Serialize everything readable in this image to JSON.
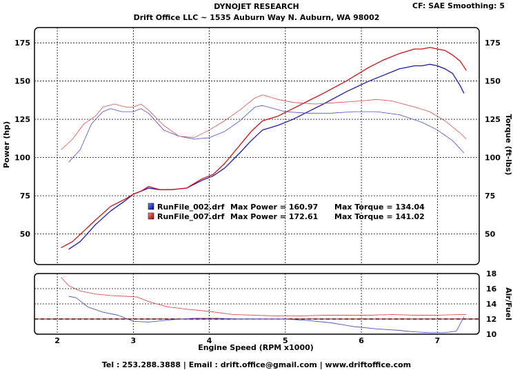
{
  "header": {
    "title": "DYNOJET RESEARCH",
    "subtitle": "Drift Office LLC ~ 1535 Auburn Way N. Auburn, WA 98002",
    "cf": "CF: SAE  Smoothing: 5"
  },
  "footer": {
    "contact": "Tel : 253.288.3888 | Email : drift.office@gmail.com | www.driftoffice.com"
  },
  "colors": {
    "run1": "#1a1ab0",
    "run2": "#d01010",
    "grid": "#000000"
  },
  "chart_data": [
    {
      "type": "line",
      "xlabel": "Engine Speed (RPM x1000)",
      "ylabel": "Power (hp)",
      "y2label": "Torque (ft-lbs)",
      "xlim": [
        1.7,
        7.55
      ],
      "ylim": [
        30,
        185
      ],
      "xticks": [
        "2",
        "3",
        "4",
        "5",
        "6",
        "7"
      ],
      "yticks": [
        "50",
        "75",
        "100",
        "125",
        "150",
        "175"
      ],
      "grid": true,
      "legend": [
        {
          "name": "RunFile_002.drf",
          "power_label": "Max Power = 160.97",
          "torque_label": "Max Torque = 134.04"
        },
        {
          "name": "RunFile_007.drf",
          "power_label": "Max Power = 172.61",
          "torque_label": "Max Torque = 141.02"
        }
      ],
      "series": [
        {
          "name": "RunFile_002.drf",
          "kind": "power",
          "color": "#1a1ab0",
          "width": 1.3,
          "x": [
            2.15,
            2.3,
            2.5,
            2.7,
            2.9,
            3.0,
            3.1,
            3.2,
            3.35,
            3.5,
            3.7,
            3.9,
            4.05,
            4.2,
            4.4,
            4.55,
            4.7,
            4.9,
            5.1,
            5.3,
            5.5,
            5.8,
            6.1,
            6.3,
            6.5,
            6.7,
            6.8,
            6.9,
            7.0,
            7.1,
            7.2,
            7.3,
            7.35
          ],
          "y": [
            40,
            45,
            56,
            65,
            72,
            76,
            78,
            80,
            79,
            79,
            80,
            85,
            88,
            93,
            103,
            111,
            118,
            121,
            125,
            130,
            135,
            143,
            150,
            154,
            158,
            160,
            160,
            161,
            160,
            158,
            155,
            147,
            142
          ]
        },
        {
          "name": "RunFile_007.drf",
          "kind": "power",
          "color": "#d01010",
          "width": 1.3,
          "x": [
            2.05,
            2.2,
            2.35,
            2.5,
            2.7,
            2.9,
            3.0,
            3.1,
            3.2,
            3.35,
            3.5,
            3.7,
            3.9,
            4.05,
            4.2,
            4.4,
            4.55,
            4.7,
            4.9,
            5.1,
            5.3,
            5.5,
            5.8,
            6.1,
            6.3,
            6.5,
            6.7,
            6.8,
            6.9,
            7.0,
            7.1,
            7.2,
            7.3,
            7.38
          ],
          "y": [
            41,
            45,
            52,
            59,
            68,
            73,
            76,
            78,
            81,
            79,
            79,
            80,
            86,
            89,
            96,
            108,
            117,
            124,
            127,
            132,
            137,
            142,
            150,
            159,
            164,
            168,
            171,
            171,
            172,
            171,
            170,
            167,
            163,
            157
          ]
        },
        {
          "name": "RunFile_002.drf",
          "kind": "torque",
          "color": "#4a4ad8",
          "width": 0.8,
          "x": [
            2.15,
            2.3,
            2.45,
            2.6,
            2.7,
            2.85,
            3.0,
            3.1,
            3.2,
            3.4,
            3.6,
            3.8,
            4.0,
            4.2,
            4.4,
            4.6,
            4.7,
            4.85,
            5.0,
            5.3,
            5.6,
            5.9,
            6.2,
            6.5,
            6.8,
            7.0,
            7.2,
            7.35
          ],
          "y": [
            97,
            105,
            122,
            130,
            132,
            130,
            130,
            132,
            129,
            118,
            114,
            112,
            113,
            117,
            124,
            133,
            134,
            132,
            130,
            129,
            129,
            130,
            130,
            128,
            123,
            118,
            111,
            103
          ]
        },
        {
          "name": "RunFile_007.drf",
          "kind": "torque",
          "color": "#e84848",
          "width": 0.8,
          "x": [
            2.05,
            2.2,
            2.35,
            2.5,
            2.6,
            2.75,
            2.9,
            3.0,
            3.1,
            3.2,
            3.4,
            3.6,
            3.8,
            4.0,
            4.2,
            4.4,
            4.6,
            4.7,
            4.9,
            5.1,
            5.4,
            5.7,
            6.0,
            6.2,
            6.4,
            6.7,
            6.9,
            7.1,
            7.3,
            7.38
          ],
          "y": [
            105,
            112,
            122,
            127,
            133,
            135,
            133,
            133,
            135,
            131,
            121,
            114,
            113,
            118,
            124,
            131,
            139,
            141,
            138,
            136,
            135,
            136,
            137,
            138,
            137,
            133,
            130,
            124,
            116,
            112
          ]
        }
      ]
    },
    {
      "type": "line",
      "ylabel": "Air/Fuel",
      "xlim": [
        1.7,
        7.55
      ],
      "ylim": [
        10,
        18
      ],
      "yticks": [
        "10",
        "12",
        "14",
        "16",
        "18"
      ],
      "reference_line": 12,
      "series": [
        {
          "name": "RunFile_002.drf",
          "color": "#5050d0",
          "x": [
            2.15,
            2.25,
            2.4,
            2.6,
            2.8,
            3.0,
            3.2,
            3.5,
            3.8,
            4.1,
            4.4,
            4.7,
            5.0,
            5.3,
            5.6,
            5.9,
            6.2,
            6.5,
            6.7,
            6.9,
            7.1,
            7.25,
            7.35
          ],
          "y": [
            15,
            14.8,
            13.6,
            12.9,
            12.5,
            11.7,
            11.6,
            11.9,
            12.1,
            12.1,
            12.0,
            12.0,
            12.0,
            11.8,
            11.5,
            11.0,
            10.7,
            10.5,
            10.3,
            10.2,
            10.2,
            10.4,
            12.3
          ]
        },
        {
          "name": "RunFile_007.drf",
          "color": "#e05050",
          "x": [
            2.05,
            2.15,
            2.3,
            2.5,
            2.7,
            2.9,
            3.05,
            3.2,
            3.45,
            3.7,
            4.0,
            4.3,
            4.6,
            4.9,
            5.2,
            5.5,
            5.8,
            6.1,
            6.4,
            6.7,
            7.0,
            7.3,
            7.38
          ],
          "y": [
            17.5,
            16.4,
            15.7,
            15.3,
            15.1,
            15.0,
            14.9,
            14.3,
            13.6,
            13.3,
            13.0,
            12.6,
            12.5,
            12.4,
            12.4,
            12.5,
            12.5,
            12.5,
            12.6,
            12.5,
            12.5,
            12.6,
            12.6
          ]
        }
      ]
    }
  ]
}
